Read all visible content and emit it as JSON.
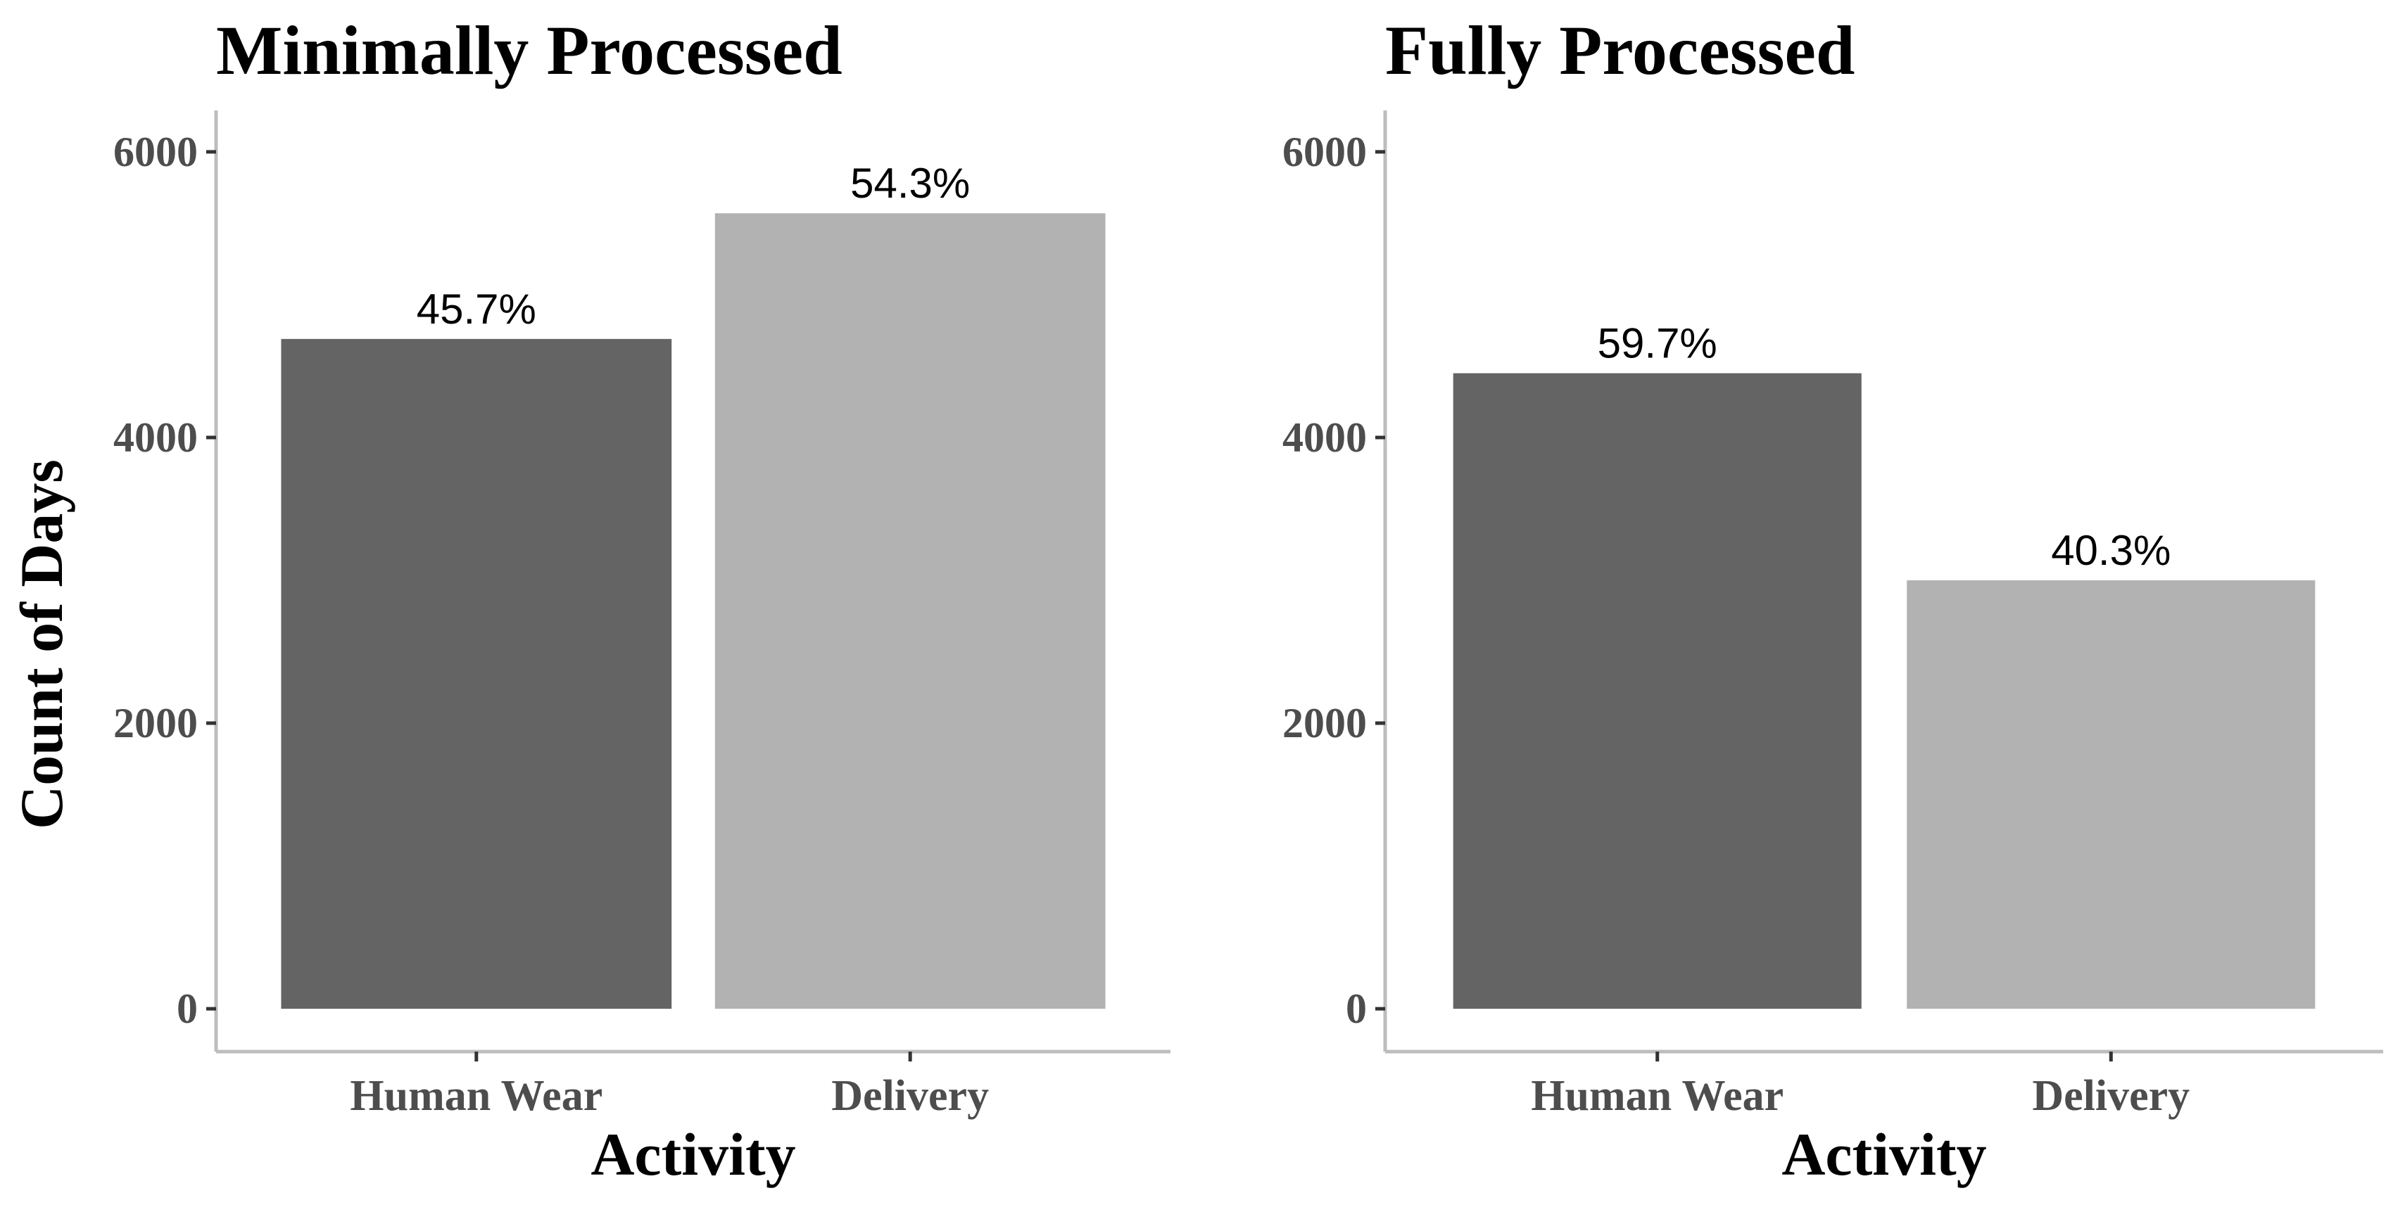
{
  "chart_data": [
    {
      "type": "bar",
      "title": "Minimally Processed",
      "x_label": "Activity",
      "y_label": "Count of Days",
      "categories": [
        "Human Wear",
        "Delivery"
      ],
      "values": [
        4690,
        5570
      ],
      "value_labels": [
        "45.7%",
        "54.3%"
      ],
      "colors": [
        "#646464",
        "#b2b2b2"
      ],
      "ylim": [
        -300,
        6290
      ],
      "yticks": [
        0,
        2000,
        4000,
        6000
      ]
    },
    {
      "type": "bar",
      "title": "Fully Processed",
      "x_label": "Activity",
      "categories": [
        "Human Wear",
        "Delivery"
      ],
      "values": [
        4450,
        3000
      ],
      "value_labels": [
        "59.7%",
        "40.3%"
      ],
      "colors": [
        "#646464",
        "#b2b2b2"
      ],
      "ylim": [
        -300,
        6290
      ],
      "yticks": [
        0,
        2000,
        4000,
        6000
      ]
    }
  ]
}
